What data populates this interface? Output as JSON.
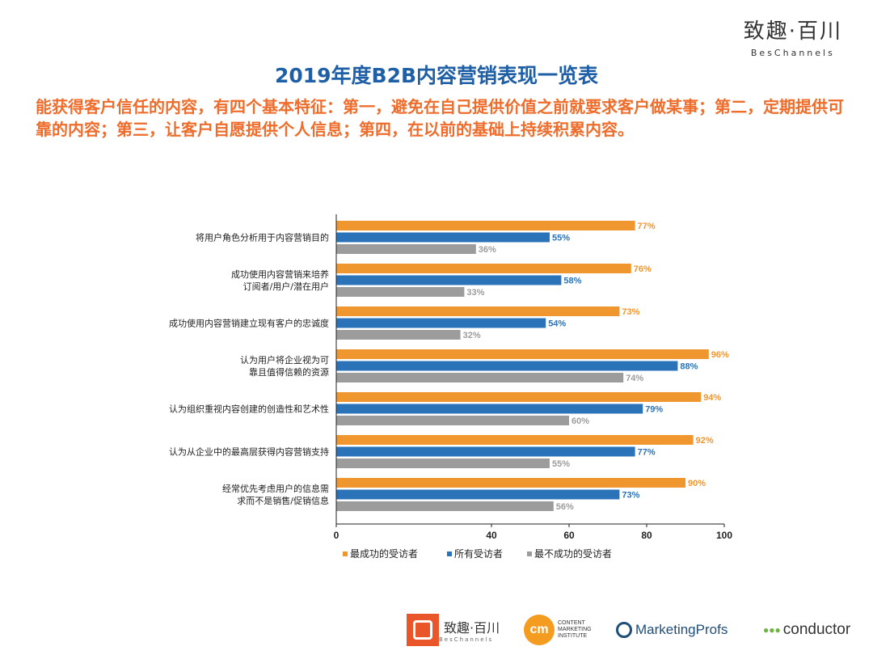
{
  "brand": {
    "cn": "致趣·百川",
    "en": "BesChannels"
  },
  "title": "2019年度B2B内容营销表现一览表",
  "intro": "能获得客户信任的内容，有四个基本特征：第一，避免在自己提供价值之前就要求客户做某事；第二，定期提供可靠的内容；第三，让客户自愿提供个人信息；第四，在以前的基础上持续积累内容。",
  "colors": {
    "most_successful": "#f0962e",
    "all": "#2a73b8",
    "least_successful": "#9c9c9c",
    "title": "#1f5fa6",
    "intro": "#ef6c2b"
  },
  "chart_data": {
    "type": "bar",
    "orientation": "horizontal",
    "categories": [
      [
        "将用户角色分析用于内容营销目的"
      ],
      [
        "成功使用内容营销来培养",
        "订阅者/用户/潜在用户"
      ],
      [
        "成功使用内容营销建立现有客户的忠诚度"
      ],
      [
        "认为用户将企业视为可",
        "靠且值得信赖的资源"
      ],
      [
        "认为组织重视内容创建的创造性和艺术性"
      ],
      [
        "认为从企业中的最高层获得内容营销支持"
      ],
      [
        "经常优先考虑用户的信息需",
        "求而不是销售/促销信息"
      ]
    ],
    "series": [
      {
        "name": "最成功的受访者",
        "values": [
          77,
          76,
          73,
          96,
          94,
          92,
          90
        ]
      },
      {
        "name": "所有受访者",
        "values": [
          55,
          58,
          54,
          88,
          79,
          77,
          73
        ]
      },
      {
        "name": "最不成功的受访者",
        "values": [
          36,
          33,
          32,
          74,
          60,
          55,
          56
        ]
      }
    ],
    "value_suffix": "%",
    "xlim": [
      0,
      100
    ],
    "xticks": [
      0,
      40,
      60,
      80,
      100
    ],
    "legend_position": "bottom",
    "grid": false
  },
  "footer": {
    "logo1_cn": "致趣·百川",
    "logo1_en": "BesChannels",
    "logo2_mark": "cm",
    "logo2_text": [
      "CONTENT",
      "MARKETING",
      "INSTITUTE"
    ],
    "logo3_text": "MarketingProfs",
    "logo4_text": "conductor"
  }
}
